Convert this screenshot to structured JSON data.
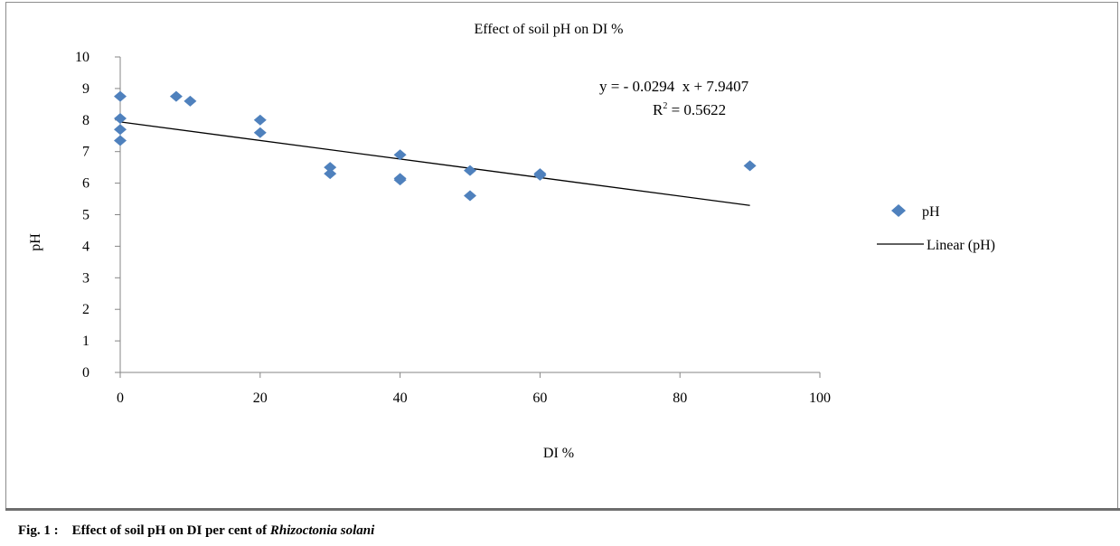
{
  "chart_data": {
    "type": "scatter",
    "title": "Effect of soil pH on DI %",
    "xlabel": "DI %",
    "ylabel": "pH",
    "xlim": [
      0,
      100
    ],
    "ylim": [
      0,
      10
    ],
    "x_ticks": [
      "0",
      "20",
      "40",
      "60",
      "80",
      "100"
    ],
    "y_ticks": [
      "0",
      "1",
      "2",
      "3",
      "4",
      "5",
      "6",
      "7",
      "8",
      "9",
      "10"
    ],
    "grid": false,
    "legend_position": "right",
    "series": [
      {
        "name": "pH",
        "color": "#4f81bd",
        "marker": "diamond",
        "points": [
          {
            "x": 0,
            "y": 8.75
          },
          {
            "x": 0,
            "y": 8.05
          },
          {
            "x": 0,
            "y": 7.7
          },
          {
            "x": 0,
            "y": 7.35
          },
          {
            "x": 8,
            "y": 8.75
          },
          {
            "x": 10,
            "y": 8.6
          },
          {
            "x": 20,
            "y": 8.0
          },
          {
            "x": 20,
            "y": 7.6
          },
          {
            "x": 30,
            "y": 6.5
          },
          {
            "x": 30,
            "y": 6.3
          },
          {
            "x": 40,
            "y": 6.9
          },
          {
            "x": 40,
            "y": 6.15
          },
          {
            "x": 40,
            "y": 6.1
          },
          {
            "x": 50,
            "y": 6.4
          },
          {
            "x": 50,
            "y": 5.6
          },
          {
            "x": 60,
            "y": 6.3
          },
          {
            "x": 60,
            "y": 6.25
          },
          {
            "x": 90,
            "y": 6.55
          }
        ]
      },
      {
        "name": "Linear (pH)",
        "type": "line",
        "color": "#000000",
        "slope": -0.0294,
        "intercept": 7.9407,
        "x_range": [
          0,
          90
        ]
      }
    ],
    "annotations": {
      "equation": "y = - 0.0294  x + 7.9407",
      "r2_label": "R",
      "r2_sup": "2",
      "r2_value": " = 0.5622"
    }
  },
  "caption": {
    "prefix": "Fig. 1 :    Effect of soil pH on DI per cent of ",
    "organism": "Rhizoctonia solani"
  }
}
